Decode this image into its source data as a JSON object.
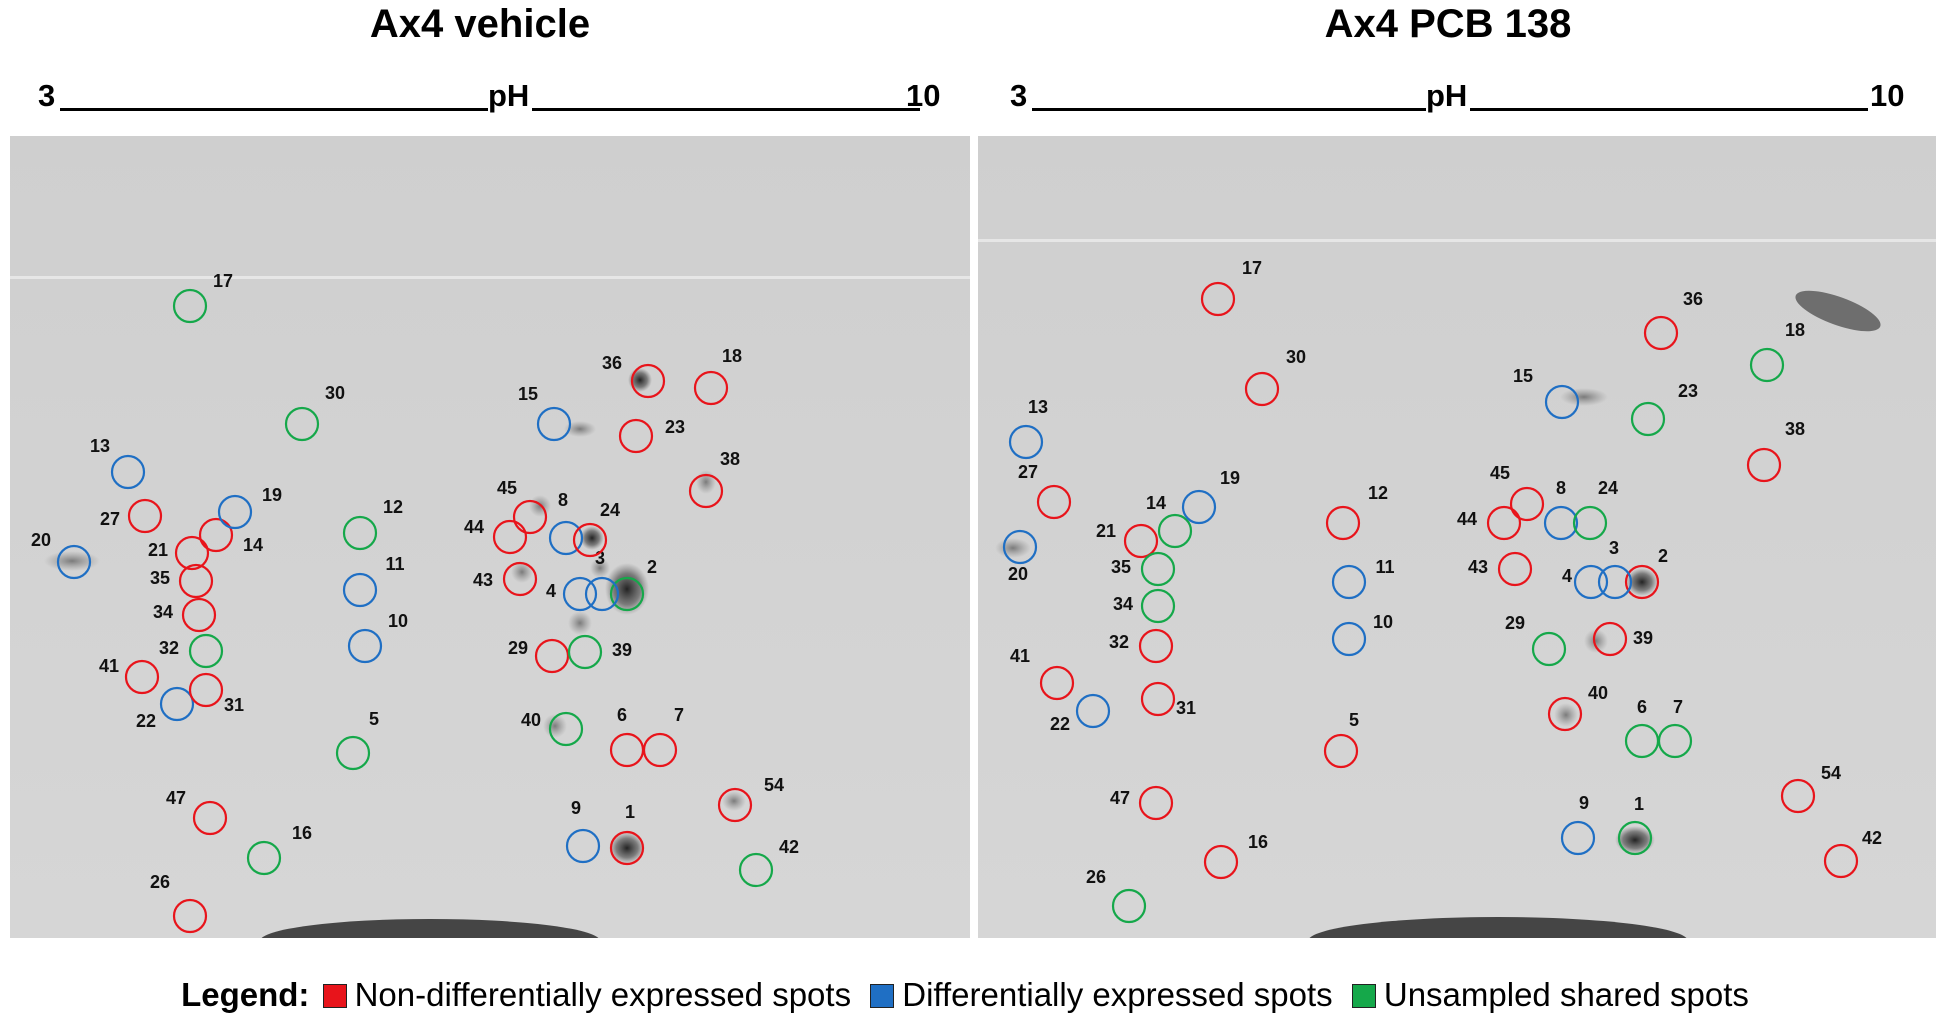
{
  "panels": [
    {
      "title": "Ax4 vehicle",
      "scale": {
        "low": "3",
        "label": "pH",
        "high": "10"
      },
      "spots": [
        {
          "n": "1",
          "c": "red"
        },
        {
          "n": "2",
          "c": "green"
        },
        {
          "n": "3",
          "c": "blue"
        },
        {
          "n": "4",
          "c": "blue"
        },
        {
          "n": "5",
          "c": "green"
        },
        {
          "n": "6",
          "c": "red"
        },
        {
          "n": "7",
          "c": "red"
        },
        {
          "n": "8",
          "c": "blue"
        },
        {
          "n": "9",
          "c": "blue"
        },
        {
          "n": "10",
          "c": "blue"
        },
        {
          "n": "11",
          "c": "blue"
        },
        {
          "n": "12",
          "c": "green"
        },
        {
          "n": "13",
          "c": "blue"
        },
        {
          "n": "14",
          "c": "red"
        },
        {
          "n": "15",
          "c": "blue"
        },
        {
          "n": "16",
          "c": "green"
        },
        {
          "n": "17",
          "c": "green"
        },
        {
          "n": "18",
          "c": "red"
        },
        {
          "n": "19",
          "c": "blue"
        },
        {
          "n": "20",
          "c": "blue"
        },
        {
          "n": "21",
          "c": "red"
        },
        {
          "n": "22",
          "c": "blue"
        },
        {
          "n": "23",
          "c": "red"
        },
        {
          "n": "24",
          "c": "red"
        },
        {
          "n": "26",
          "c": "red"
        },
        {
          "n": "27",
          "c": "red"
        },
        {
          "n": "29",
          "c": "red"
        },
        {
          "n": "30",
          "c": "green"
        },
        {
          "n": "31",
          "c": "red"
        },
        {
          "n": "32",
          "c": "green"
        },
        {
          "n": "34",
          "c": "red"
        },
        {
          "n": "35",
          "c": "red"
        },
        {
          "n": "36",
          "c": "red"
        },
        {
          "n": "38",
          "c": "red"
        },
        {
          "n": "39",
          "c": "green"
        },
        {
          "n": "40",
          "c": "green"
        },
        {
          "n": "41",
          "c": "red"
        },
        {
          "n": "42",
          "c": "green"
        },
        {
          "n": "43",
          "c": "red"
        },
        {
          "n": "44",
          "c": "red"
        },
        {
          "n": "45",
          "c": "red"
        },
        {
          "n": "47",
          "c": "red"
        },
        {
          "n": "54",
          "c": "red"
        }
      ]
    },
    {
      "title": "Ax4 PCB 138",
      "scale": {
        "low": "3",
        "label": "pH",
        "high": "10"
      },
      "spots": [
        {
          "n": "1",
          "c": "green"
        },
        {
          "n": "2",
          "c": "red"
        },
        {
          "n": "3",
          "c": "blue"
        },
        {
          "n": "4",
          "c": "blue"
        },
        {
          "n": "5",
          "c": "red"
        },
        {
          "n": "6",
          "c": "green"
        },
        {
          "n": "7",
          "c": "green"
        },
        {
          "n": "8",
          "c": "blue"
        },
        {
          "n": "9",
          "c": "blue"
        },
        {
          "n": "10",
          "c": "blue"
        },
        {
          "n": "11",
          "c": "blue"
        },
        {
          "n": "12",
          "c": "red"
        },
        {
          "n": "13",
          "c": "blue"
        },
        {
          "n": "14",
          "c": "green"
        },
        {
          "n": "15",
          "c": "blue"
        },
        {
          "n": "16",
          "c": "red"
        },
        {
          "n": "17",
          "c": "red"
        },
        {
          "n": "18",
          "c": "green"
        },
        {
          "n": "19",
          "c": "blue"
        },
        {
          "n": "20",
          "c": "blue"
        },
        {
          "n": "21",
          "c": "red"
        },
        {
          "n": "22",
          "c": "blue"
        },
        {
          "n": "23",
          "c": "green"
        },
        {
          "n": "24",
          "c": "green"
        },
        {
          "n": "26",
          "c": "green"
        },
        {
          "n": "27",
          "c": "red"
        },
        {
          "n": "29",
          "c": "green"
        },
        {
          "n": "30",
          "c": "red"
        },
        {
          "n": "31",
          "c": "red"
        },
        {
          "n": "32",
          "c": "red"
        },
        {
          "n": "34",
          "c": "green"
        },
        {
          "n": "35",
          "c": "green"
        },
        {
          "n": "36",
          "c": "red"
        },
        {
          "n": "38",
          "c": "red"
        },
        {
          "n": "39",
          "c": "red"
        },
        {
          "n": "40",
          "c": "red"
        },
        {
          "n": "41",
          "c": "red"
        },
        {
          "n": "42",
          "c": "red"
        },
        {
          "n": "43",
          "c": "red"
        },
        {
          "n": "44",
          "c": "red"
        },
        {
          "n": "45",
          "c": "red"
        },
        {
          "n": "47",
          "c": "red"
        },
        {
          "n": "54",
          "c": "red"
        }
      ]
    }
  ],
  "legend": {
    "title": "Legend:",
    "items": [
      {
        "label": "Non-differentially expressed spots",
        "color": "#e8141b"
      },
      {
        "label": "Differentially expressed spots",
        "color": "#1f6fc4"
      },
      {
        "label": "Unsampled shared spots",
        "color": "#15a84a"
      }
    ]
  },
  "colors": {
    "red": "#e8141b",
    "blue": "#1f6fc4",
    "green": "#15a84a"
  }
}
